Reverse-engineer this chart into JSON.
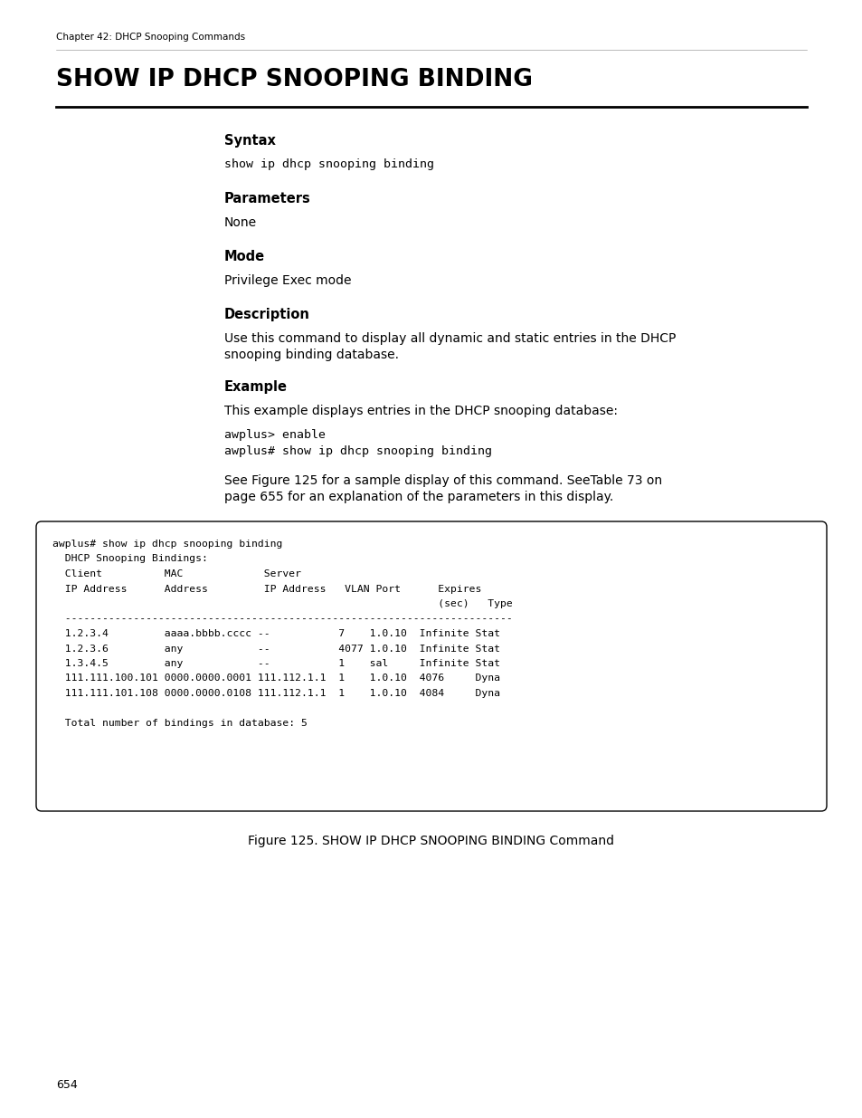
{
  "page_header": "Chapter 42: DHCP Snooping Commands",
  "main_title": "SHOW IP DHCP SNOOPING BINDING",
  "section_syntax": "Syntax",
  "syntax_code": "show ip dhcp snooping binding",
  "section_parameters": "Parameters",
  "parameters_text": "None",
  "section_mode": "Mode",
  "mode_text": "Privilege Exec mode",
  "section_description": "Description",
  "description_line1": "Use this command to display all dynamic and static entries in the DHCP",
  "description_line2": "snooping binding database.",
  "section_example": "Example",
  "example_text": "This example displays entries in the DHCP snooping database:",
  "example_code_line1": "awplus> enable",
  "example_code_line2": "awplus# show ip dhcp snooping binding",
  "see_line1": "See Figure 125 for a sample display of this command. SeeTable 73 on",
  "see_line2": "page 655 for an explanation of the parameters in this display.",
  "box_lines": [
    "awplus# show ip dhcp snooping binding",
    "  DHCP Snooping Bindings:",
    "  Client          MAC             Server",
    "  IP Address      Address         IP Address   VLAN Port      Expires",
    "                                                              (sec)   Type",
    "  ------------------------------------------------------------------------",
    "  1.2.3.4         aaaa.bbbb.cccc --           7    1.0.10  Infinite Stat",
    "  1.2.3.6         any            --           4077 1.0.10  Infinite Stat",
    "  1.3.4.5         any            --           1    sal     Infinite Stat",
    "  111.111.100.101 0000.0000.0001 111.112.1.1  1    1.0.10  4076     Dyna",
    "  111.111.101.108 0000.0000.0108 111.112.1.1  1    1.0.10  4084     Dyna",
    "",
    "  Total number of bindings in database: 5"
  ],
  "figure_caption": "Figure 125. SHOW IP DHCP SNOOPING BINDING Command",
  "page_number": "654",
  "bg_color": "#ffffff",
  "text_color": "#000000",
  "box_bg_color": "#ffffff",
  "box_border_color": "#000000"
}
